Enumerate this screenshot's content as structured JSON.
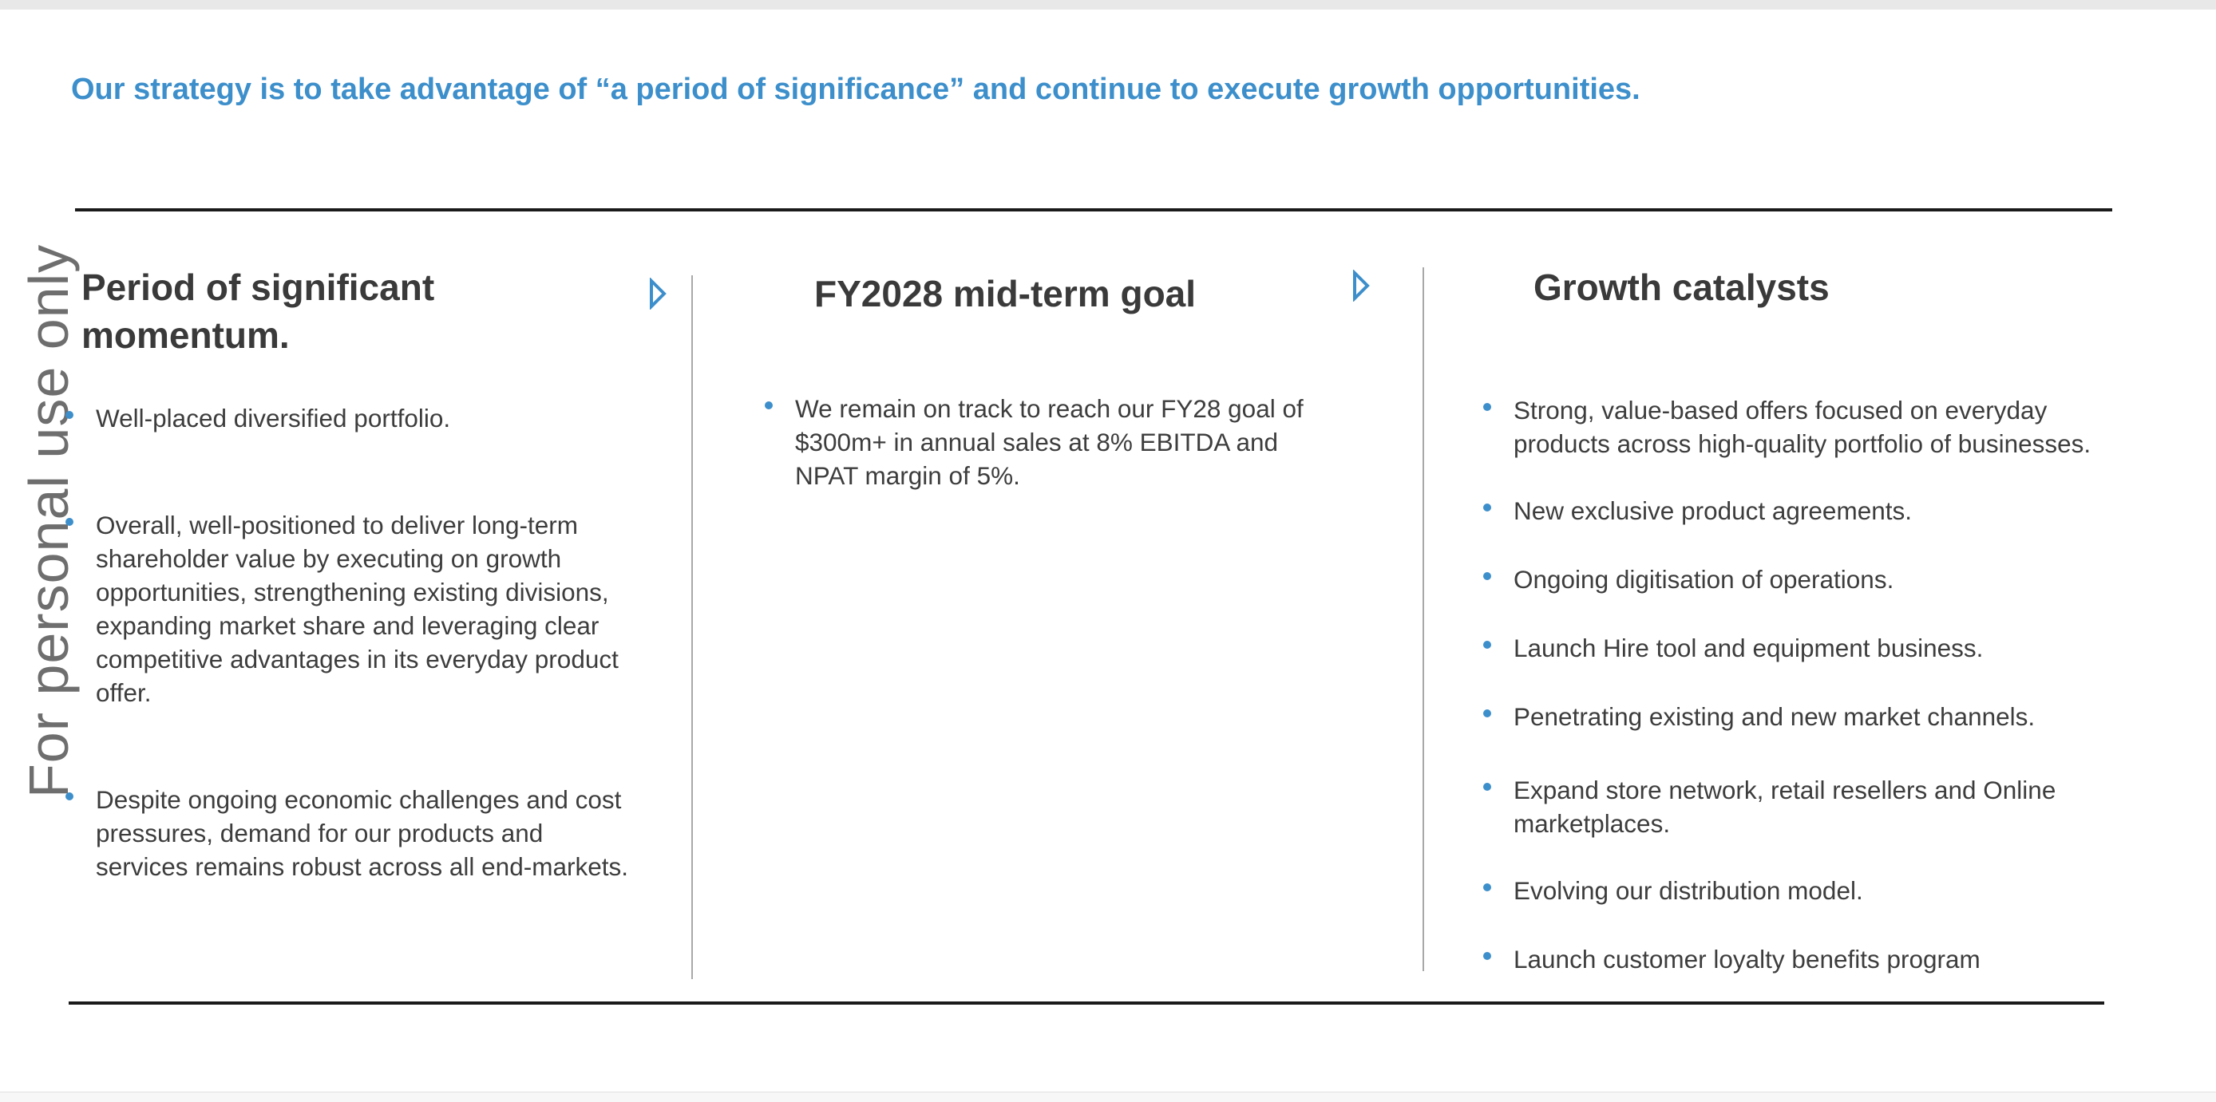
{
  "headline": "Our strategy is to take advantage of “a period of significance” and continue to execute growth opportunities.",
  "watermark": "For personal use only",
  "colors": {
    "accent": "#3d8fcb",
    "text": "#3a3a3a",
    "rule": "#1a1a1a",
    "divider": "#a8a8a8"
  },
  "columns": [
    {
      "title": "Period of significant momentum.",
      "bullets": [
        "Well-placed diversified portfolio.",
        "Overall, well-positioned to deliver long-term shareholder value by executing on growth opportunities, strengthening existing divisions, expanding market share and leveraging clear competitive advantages in its everyday product offer.",
        "Despite ongoing economic challenges and cost pressures, demand for our products and services remains robust across all end-markets."
      ]
    },
    {
      "title": "FY2028 mid-term goal",
      "bullets": [
        "We remain on track to reach our FY28 goal of $300m+ in annual sales at 8% EBITDA and NPAT margin of 5%."
      ]
    },
    {
      "title": "Growth catalysts",
      "bullets": [
        "Strong, value-based offers focused on everyday products across high-quality portfolio of businesses.",
        "New exclusive product agreements.",
        "Ongoing digitisation of operations.",
        "Launch Hire tool and equipment business.",
        "Penetrating existing and new market channels.",
        "Expand store network, retail resellers and Online marketplaces.",
        "Evolving our distribution model.",
        "Launch customer loyalty benefits program"
      ]
    }
  ],
  "icons": {
    "column_arrow": "play-triangle-outline-icon",
    "bullet": "bullet-dot-icon"
  }
}
